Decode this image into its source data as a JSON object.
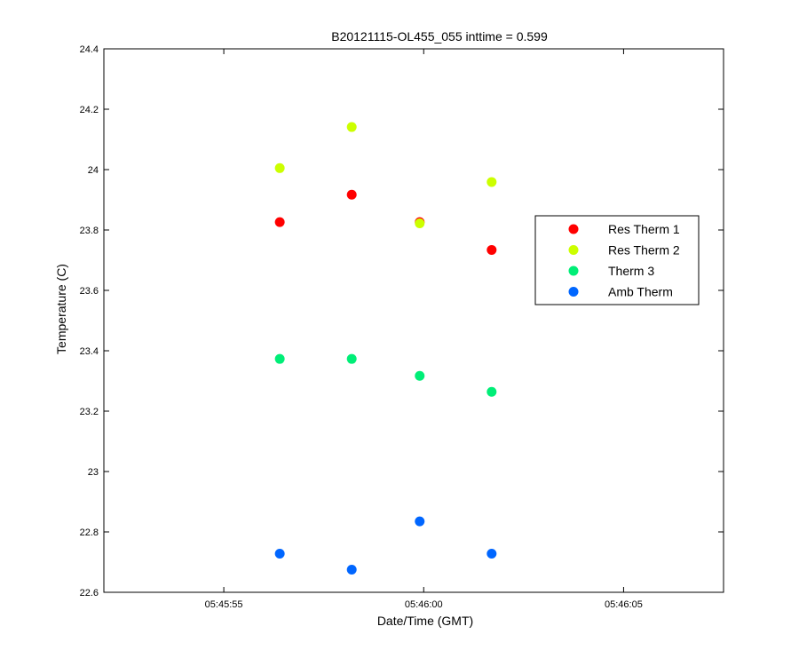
{
  "chart_data": {
    "type": "scatter",
    "title": "B20121115-OL455_055 inttime = 0.599",
    "xlabel": "Date/Time (GMT)",
    "ylabel": "Temperature (C)",
    "xlim": [
      "05:45:52",
      "05:46:07.5"
    ],
    "ylim": [
      22.6,
      24.4
    ],
    "x_ticks": [
      "05:45:55",
      "05:46:00",
      "05:46:05"
    ],
    "y_ticks": [
      "22.6",
      "22.8",
      "23",
      "23.2",
      "23.4",
      "23.6",
      "23.8",
      "24",
      "24.2",
      "24.4"
    ],
    "x": [
      "05:45:56.4",
      "05:45:58.2",
      "05:45:59.9",
      "05:46:01.7"
    ],
    "grid": false,
    "legend_position": "right",
    "series": [
      {
        "name": "Res Therm 1",
        "color": "#ff0000",
        "values": [
          23.826,
          23.917,
          23.826,
          23.734
        ]
      },
      {
        "name": "Res Therm 2",
        "color": "#ccff00",
        "values": [
          24.005,
          24.141,
          23.822,
          23.959
        ]
      },
      {
        "name": "Therm 3",
        "color": "#00ee77",
        "values": [
          23.373,
          23.373,
          23.317,
          23.264
        ]
      },
      {
        "name": "Amb Therm",
        "color": "#0066ff",
        "values": [
          22.728,
          22.675,
          22.835,
          22.728
        ]
      }
    ]
  }
}
